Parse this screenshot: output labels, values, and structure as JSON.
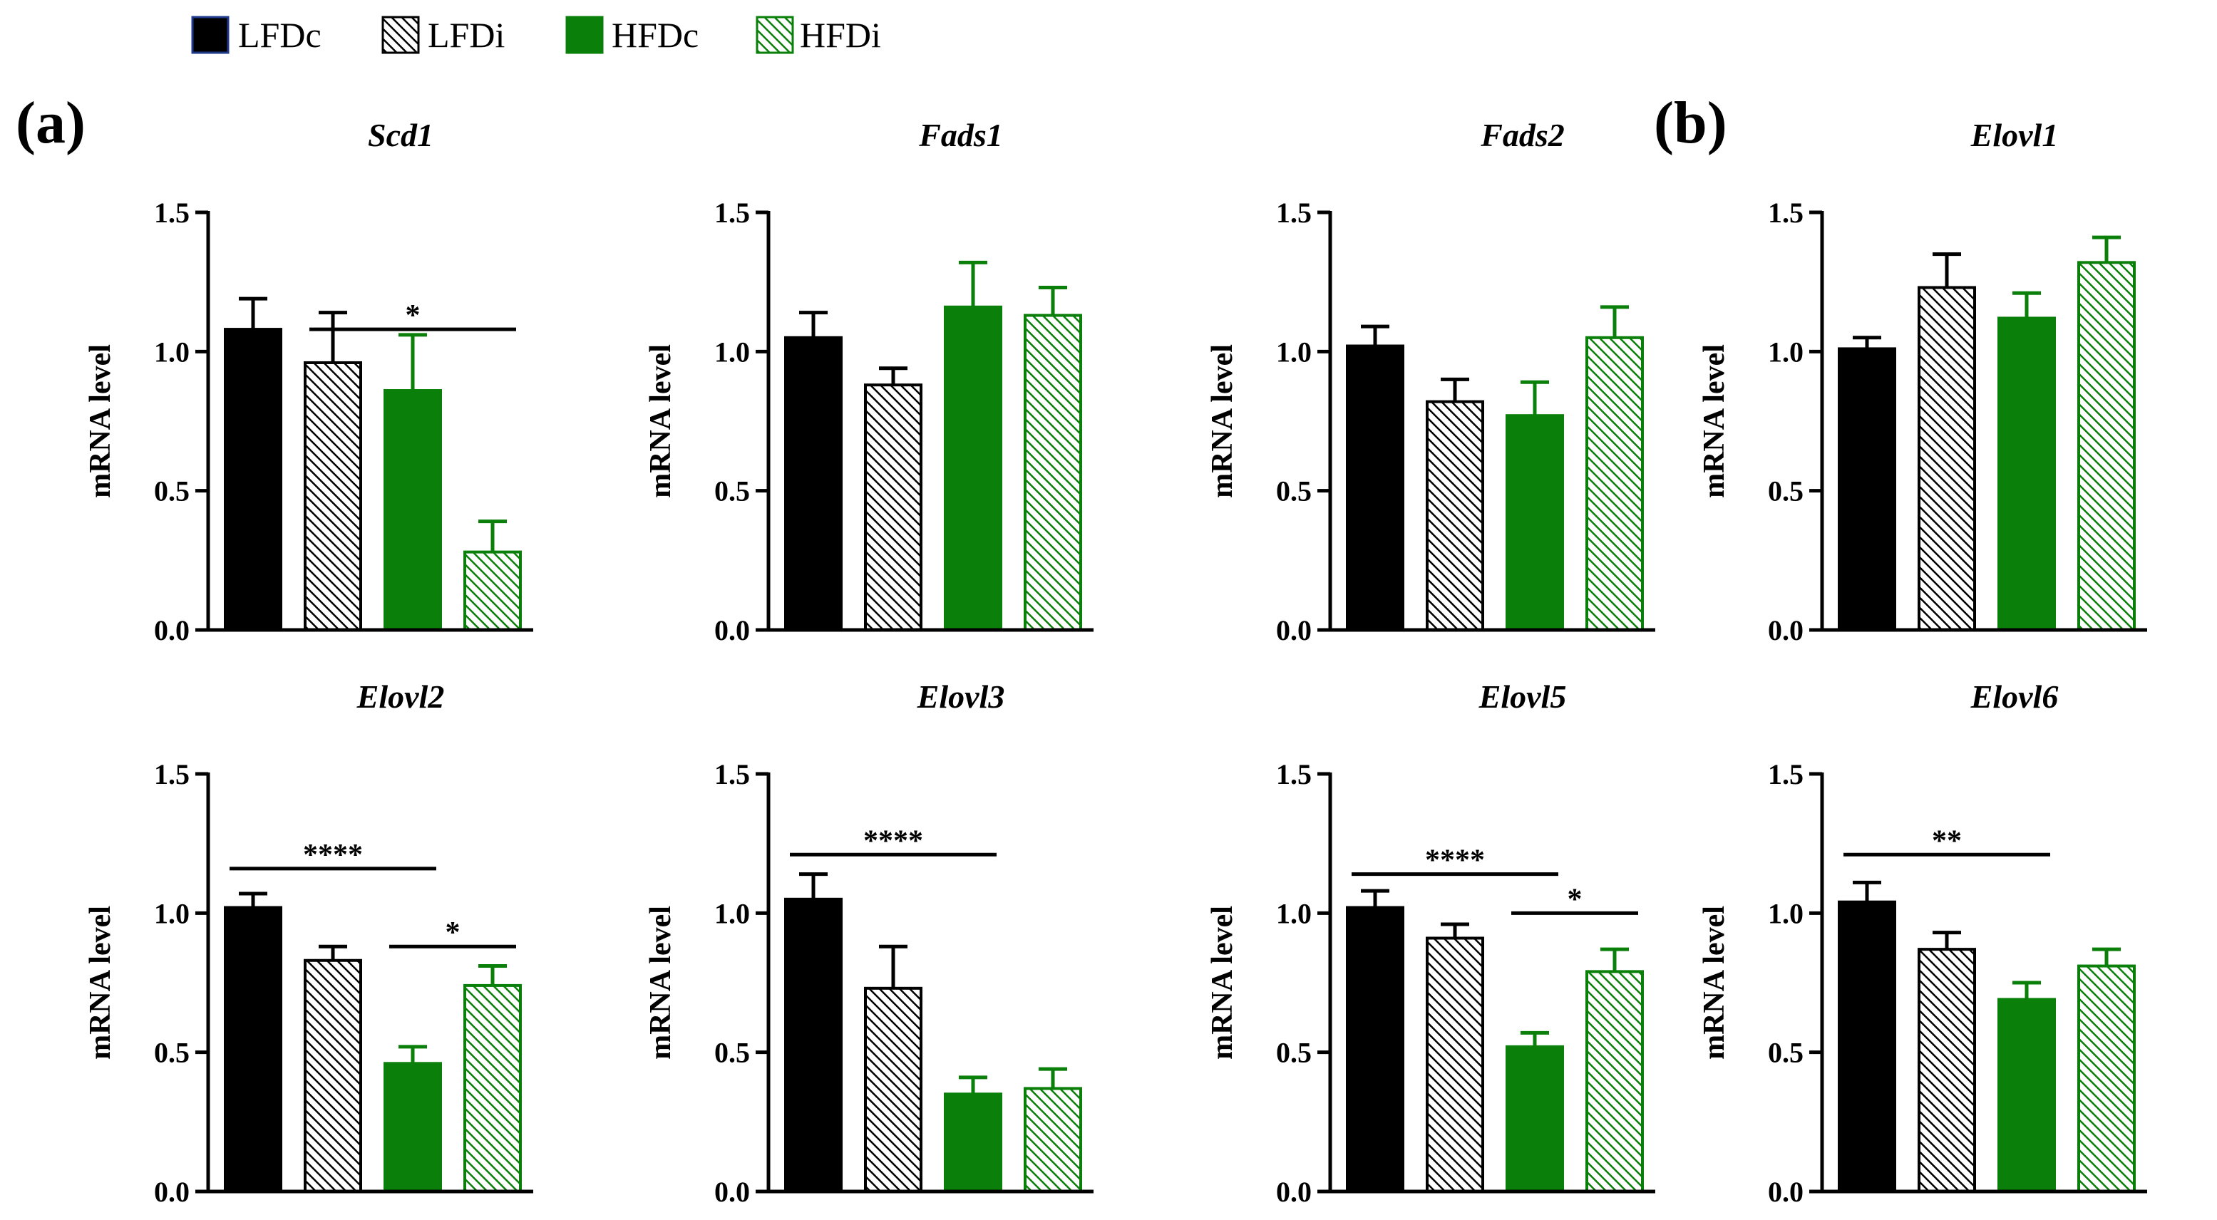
{
  "legend": {
    "entries": [
      {
        "label": "LFDc",
        "fill": "solid",
        "color": "#000000"
      },
      {
        "label": "LFDi",
        "fill": "hatched",
        "color": "#000000"
      },
      {
        "label": "HFDc",
        "fill": "solid",
        "color": "#0a7f0a"
      },
      {
        "label": "HFDi",
        "fill": "hatched",
        "color": "#0a7f0a"
      }
    ]
  },
  "panel_labels": {
    "a": "(a)",
    "b": "(b)"
  },
  "colors": {
    "black": "#000000",
    "green": "#0a7f0a",
    "axis": "#000000"
  },
  "chart_data": [
    {
      "type": "bar",
      "title": "Scd1",
      "ylabel": "mRNA level",
      "xlabel": "",
      "ylim": [
        0,
        1.5
      ],
      "yticks": [
        "0.0",
        "0.5",
        "1.0",
        "1.5"
      ],
      "categories": [
        "LFDc",
        "LFDi",
        "HFDc",
        "HFDi"
      ],
      "values": [
        1.08,
        0.96,
        0.86,
        0.28
      ],
      "errors": [
        0.11,
        0.18,
        0.2,
        0.11
      ],
      "significance": [
        {
          "from": 1,
          "to": 3,
          "label": "*",
          "y": 1.08
        }
      ]
    },
    {
      "type": "bar",
      "title": "Fads1",
      "ylabel": "mRNA level",
      "xlabel": "",
      "ylim": [
        0,
        1.5
      ],
      "yticks": [
        "0.0",
        "0.5",
        "1.0",
        "1.5"
      ],
      "categories": [
        "LFDc",
        "LFDi",
        "HFDc",
        "HFDi"
      ],
      "values": [
        1.05,
        0.88,
        1.16,
        1.13
      ],
      "errors": [
        0.09,
        0.06,
        0.16,
        0.1
      ],
      "significance": []
    },
    {
      "type": "bar",
      "title": "Fads2",
      "ylabel": "mRNA level",
      "xlabel": "",
      "ylim": [
        0,
        1.5
      ],
      "yticks": [
        "0.0",
        "0.5",
        "1.0",
        "1.5"
      ],
      "categories": [
        "LFDc",
        "LFDi",
        "HFDc",
        "HFDi"
      ],
      "values": [
        1.02,
        0.82,
        0.77,
        1.05
      ],
      "errors": [
        0.07,
        0.08,
        0.12,
        0.11
      ],
      "significance": []
    },
    {
      "type": "bar",
      "title": "Elovl1",
      "ylabel": "mRNA level",
      "xlabel": "",
      "ylim": [
        0,
        1.5
      ],
      "yticks": [
        "0.0",
        "0.5",
        "1.0",
        "1.5"
      ],
      "categories": [
        "LFDc",
        "LFDi",
        "HFDc",
        "HFDi"
      ],
      "values": [
        1.01,
        1.23,
        1.12,
        1.32
      ],
      "errors": [
        0.04,
        0.12,
        0.09,
        0.09
      ],
      "significance": []
    },
    {
      "type": "bar",
      "title": "Elovl2",
      "ylabel": "mRNA level",
      "xlabel": "",
      "ylim": [
        0,
        1.5
      ],
      "yticks": [
        "0.0",
        "0.5",
        "1.0",
        "1.5"
      ],
      "categories": [
        "LFDc",
        "LFDi",
        "HFDc",
        "HFDi"
      ],
      "values": [
        1.02,
        0.83,
        0.46,
        0.74
      ],
      "errors": [
        0.05,
        0.05,
        0.06,
        0.07
      ],
      "significance": [
        {
          "from": 0,
          "to": 2,
          "label": "****",
          "y": 1.16
        },
        {
          "from": 2,
          "to": 3,
          "label": "*",
          "y": 0.88
        }
      ]
    },
    {
      "type": "bar",
      "title": "Elovl3",
      "ylabel": "mRNA level",
      "xlabel": "",
      "ylim": [
        0,
        1.5
      ],
      "yticks": [
        "0.0",
        "0.5",
        "1.0",
        "1.5"
      ],
      "categories": [
        "LFDc",
        "LFDi",
        "HFDc",
        "HFDi"
      ],
      "values": [
        1.05,
        0.73,
        0.35,
        0.37
      ],
      "errors": [
        0.09,
        0.15,
        0.06,
        0.07
      ],
      "significance": [
        {
          "from": 0,
          "to": 2,
          "label": "****",
          "y": 1.21
        }
      ]
    },
    {
      "type": "bar",
      "title": "Elovl5",
      "ylabel": "mRNA level",
      "xlabel": "",
      "ylim": [
        0,
        1.5
      ],
      "yticks": [
        "0.0",
        "0.5",
        "1.0",
        "1.5"
      ],
      "categories": [
        "LFDc",
        "LFDi",
        "HFDc",
        "HFDi"
      ],
      "values": [
        1.02,
        0.91,
        0.52,
        0.79
      ],
      "errors": [
        0.06,
        0.05,
        0.05,
        0.08
      ],
      "significance": [
        {
          "from": 0,
          "to": 2,
          "label": "****",
          "y": 1.14
        },
        {
          "from": 2,
          "to": 3,
          "label": "*",
          "y": 1.0
        }
      ]
    },
    {
      "type": "bar",
      "title": "Elovl6",
      "ylabel": "mRNA level",
      "xlabel": "",
      "ylim": [
        0,
        1.5
      ],
      "yticks": [
        "0.0",
        "0.5",
        "1.0",
        "1.5"
      ],
      "categories": [
        "LFDc",
        "LFDi",
        "HFDc",
        "HFDi"
      ],
      "values": [
        1.04,
        0.87,
        0.69,
        0.81
      ],
      "errors": [
        0.07,
        0.06,
        0.06,
        0.06
      ],
      "significance": [
        {
          "from": 0,
          "to": 2,
          "label": "**",
          "y": 1.21
        }
      ]
    }
  ]
}
